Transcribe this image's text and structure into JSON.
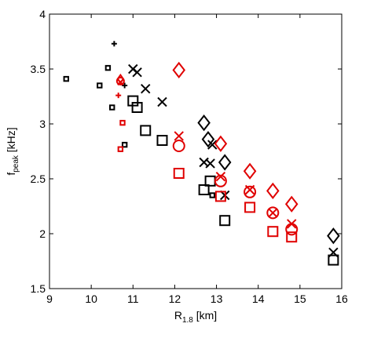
{
  "chart_data": {
    "type": "scatter",
    "title": "",
    "xlabel_main": "R",
    "xlabel_sub": "1.8",
    "xlabel_unit": " [km]",
    "ylabel_main": "f",
    "ylabel_sub": "peak",
    "ylabel_unit": " [kHz]",
    "xlim": [
      9,
      16
    ],
    "ylim": [
      1.5,
      4
    ],
    "xticks": [
      {
        "value": 9,
        "label": "9"
      },
      {
        "value": 10,
        "label": "10"
      },
      {
        "value": 11,
        "label": "11"
      },
      {
        "value": 12,
        "label": "12"
      },
      {
        "value": 13,
        "label": "13"
      },
      {
        "value": 14,
        "label": "14"
      },
      {
        "value": 15,
        "label": "15"
      },
      {
        "value": 16,
        "label": "16"
      }
    ],
    "yticks": [
      {
        "value": 1.5,
        "label": "1.5"
      },
      {
        "value": 2,
        "label": "2"
      },
      {
        "value": 2.5,
        "label": "2.5"
      },
      {
        "value": 3,
        "label": "3"
      },
      {
        "value": 3.5,
        "label": "3.5"
      },
      {
        "value": 4,
        "label": "4"
      }
    ],
    "grid": false,
    "colors": {
      "black": "#000000",
      "red": "#e00000"
    },
    "points": [
      {
        "x": 9.4,
        "y": 3.41,
        "marker": "square",
        "size": "small",
        "color": "black"
      },
      {
        "x": 10.2,
        "y": 3.35,
        "marker": "square",
        "size": "small",
        "color": "black"
      },
      {
        "x": 10.4,
        "y": 3.51,
        "marker": "square",
        "size": "small",
        "color": "black"
      },
      {
        "x": 10.5,
        "y": 3.15,
        "marker": "square",
        "size": "small",
        "color": "black"
      },
      {
        "x": 10.55,
        "y": 3.73,
        "marker": "plus",
        "size": "small",
        "color": "black"
      },
      {
        "x": 10.8,
        "y": 3.35,
        "marker": "plus",
        "size": "small",
        "color": "black"
      },
      {
        "x": 10.8,
        "y": 2.81,
        "marker": "square",
        "size": "small",
        "color": "black"
      },
      {
        "x": 10.7,
        "y": 3.41,
        "marker": "diamond",
        "size": "small",
        "color": "red"
      },
      {
        "x": 10.7,
        "y": 3.39,
        "marker": "circle",
        "size": "small",
        "color": "red"
      },
      {
        "x": 10.7,
        "y": 3.38,
        "marker": "cross",
        "size": "small",
        "color": "red"
      },
      {
        "x": 10.65,
        "y": 3.26,
        "marker": "plus",
        "size": "small",
        "color": "red"
      },
      {
        "x": 10.75,
        "y": 3.01,
        "marker": "square",
        "size": "small",
        "color": "red"
      },
      {
        "x": 10.7,
        "y": 2.77,
        "marker": "square",
        "size": "small",
        "color": "red"
      },
      {
        "x": 11.0,
        "y": 3.5,
        "marker": "cross",
        "size": "large",
        "color": "black"
      },
      {
        "x": 11.1,
        "y": 3.47,
        "marker": "cross",
        "size": "large",
        "color": "black"
      },
      {
        "x": 11.3,
        "y": 3.32,
        "marker": "cross",
        "size": "large",
        "color": "black"
      },
      {
        "x": 11.7,
        "y": 3.2,
        "marker": "cross",
        "size": "large",
        "color": "black"
      },
      {
        "x": 11.0,
        "y": 3.21,
        "marker": "square",
        "size": "large",
        "color": "black"
      },
      {
        "x": 11.1,
        "y": 3.15,
        "marker": "square",
        "size": "large",
        "color": "black"
      },
      {
        "x": 11.3,
        "y": 2.94,
        "marker": "square",
        "size": "large",
        "color": "black"
      },
      {
        "x": 11.7,
        "y": 2.85,
        "marker": "square",
        "size": "large",
        "color": "black"
      },
      {
        "x": 12.1,
        "y": 3.49,
        "marker": "diamond",
        "size": "large",
        "color": "red"
      },
      {
        "x": 12.1,
        "y": 2.89,
        "marker": "cross",
        "size": "large",
        "color": "red"
      },
      {
        "x": 12.1,
        "y": 2.8,
        "marker": "circle",
        "size": "large",
        "color": "red"
      },
      {
        "x": 12.1,
        "y": 2.55,
        "marker": "square",
        "size": "large",
        "color": "red"
      },
      {
        "x": 12.7,
        "y": 3.01,
        "marker": "diamond",
        "size": "large",
        "color": "black"
      },
      {
        "x": 12.8,
        "y": 2.86,
        "marker": "diamond",
        "size": "large",
        "color": "black"
      },
      {
        "x": 12.9,
        "y": 2.81,
        "marker": "cross",
        "size": "large",
        "color": "black"
      },
      {
        "x": 12.7,
        "y": 2.65,
        "marker": "cross",
        "size": "large",
        "color": "black"
      },
      {
        "x": 12.85,
        "y": 2.64,
        "marker": "cross",
        "size": "large",
        "color": "black"
      },
      {
        "x": 12.85,
        "y": 2.48,
        "marker": "square",
        "size": "large",
        "color": "black"
      },
      {
        "x": 12.7,
        "y": 2.4,
        "marker": "square",
        "size": "large",
        "color": "black"
      },
      {
        "x": 12.9,
        "y": 2.35,
        "marker": "square",
        "size": "small",
        "color": "black"
      },
      {
        "x": 13.2,
        "y": 2.65,
        "marker": "diamond",
        "size": "large",
        "color": "black"
      },
      {
        "x": 13.2,
        "y": 2.35,
        "marker": "cross",
        "size": "large",
        "color": "black"
      },
      {
        "x": 13.2,
        "y": 2.12,
        "marker": "square",
        "size": "large",
        "color": "black"
      },
      {
        "x": 13.1,
        "y": 2.82,
        "marker": "diamond",
        "size": "large",
        "color": "red"
      },
      {
        "x": 13.1,
        "y": 2.52,
        "marker": "cross",
        "size": "large",
        "color": "red"
      },
      {
        "x": 13.1,
        "y": 2.48,
        "marker": "circle",
        "size": "large",
        "color": "red"
      },
      {
        "x": 13.1,
        "y": 2.34,
        "marker": "square",
        "size": "large",
        "color": "red"
      },
      {
        "x": 13.8,
        "y": 2.57,
        "marker": "diamond",
        "size": "large",
        "color": "red"
      },
      {
        "x": 13.8,
        "y": 2.4,
        "marker": "cross",
        "size": "large",
        "color": "red"
      },
      {
        "x": 13.8,
        "y": 2.38,
        "marker": "circle",
        "size": "large",
        "color": "red"
      },
      {
        "x": 13.8,
        "y": 2.24,
        "marker": "square",
        "size": "large",
        "color": "red"
      },
      {
        "x": 14.35,
        "y": 2.39,
        "marker": "diamond",
        "size": "large",
        "color": "red"
      },
      {
        "x": 14.35,
        "y": 2.19,
        "marker": "cross",
        "size": "large",
        "color": "red"
      },
      {
        "x": 14.35,
        "y": 2.19,
        "marker": "circle",
        "size": "large",
        "color": "red"
      },
      {
        "x": 14.35,
        "y": 2.02,
        "marker": "square",
        "size": "large",
        "color": "red"
      },
      {
        "x": 14.8,
        "y": 2.27,
        "marker": "diamond",
        "size": "large",
        "color": "red"
      },
      {
        "x": 14.8,
        "y": 2.09,
        "marker": "cross",
        "size": "large",
        "color": "red"
      },
      {
        "x": 14.8,
        "y": 2.04,
        "marker": "circle",
        "size": "large",
        "color": "red"
      },
      {
        "x": 14.8,
        "y": 1.97,
        "marker": "square",
        "size": "large",
        "color": "red"
      },
      {
        "x": 15.8,
        "y": 1.98,
        "marker": "diamond",
        "size": "large",
        "color": "black"
      },
      {
        "x": 15.8,
        "y": 1.83,
        "marker": "cross",
        "size": "large",
        "color": "black"
      },
      {
        "x": 15.8,
        "y": 1.76,
        "marker": "square",
        "size": "large",
        "color": "black"
      }
    ]
  }
}
